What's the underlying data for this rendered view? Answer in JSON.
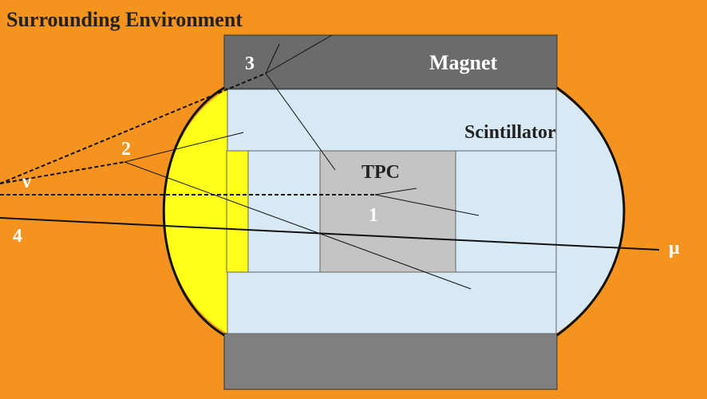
{
  "title": "Surrounding Environment",
  "regions": {
    "magnet": "Magnet",
    "scintillator": "Scintillator",
    "tpc": "TPC"
  },
  "particles": {
    "neutrino": "ν",
    "muon": "μ"
  },
  "event_labels": [
    "1",
    "2",
    "3",
    "4"
  ],
  "colors": {
    "environment": "#f5931f",
    "magnet": "#6b6b6b",
    "magnet_lower": "#7f7f7f",
    "scintillator": "#d6e9f5",
    "tpc": "#c4c4c4",
    "yellow_region": "#ffff1a"
  }
}
